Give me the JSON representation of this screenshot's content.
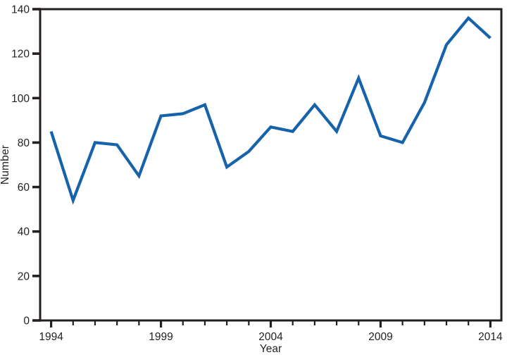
{
  "chart_data": {
    "type": "line",
    "title": "",
    "xlabel": "Year",
    "ylabel": "Number",
    "x": [
      1994,
      1995,
      1996,
      1997,
      1998,
      1999,
      2000,
      2001,
      2002,
      2003,
      2004,
      2005,
      2006,
      2007,
      2008,
      2009,
      2010,
      2011,
      2012,
      2013,
      2014
    ],
    "values": [
      85,
      54,
      80,
      79,
      65,
      92,
      93,
      97,
      69,
      76,
      87,
      85,
      97,
      85,
      109,
      83,
      80,
      98,
      124,
      136,
      127
    ],
    "xlim": [
      1993.5,
      2014.5
    ],
    "ylim": [
      0,
      140
    ],
    "yticks": [
      0,
      20,
      40,
      60,
      80,
      100,
      120,
      140
    ],
    "labeled_xticks": [
      1994,
      1999,
      2004,
      2009,
      2014
    ],
    "grid": false,
    "legend": "none",
    "line_color": "#1663ac",
    "axis_color": "#231f20",
    "background_color": "#ffffff"
  }
}
